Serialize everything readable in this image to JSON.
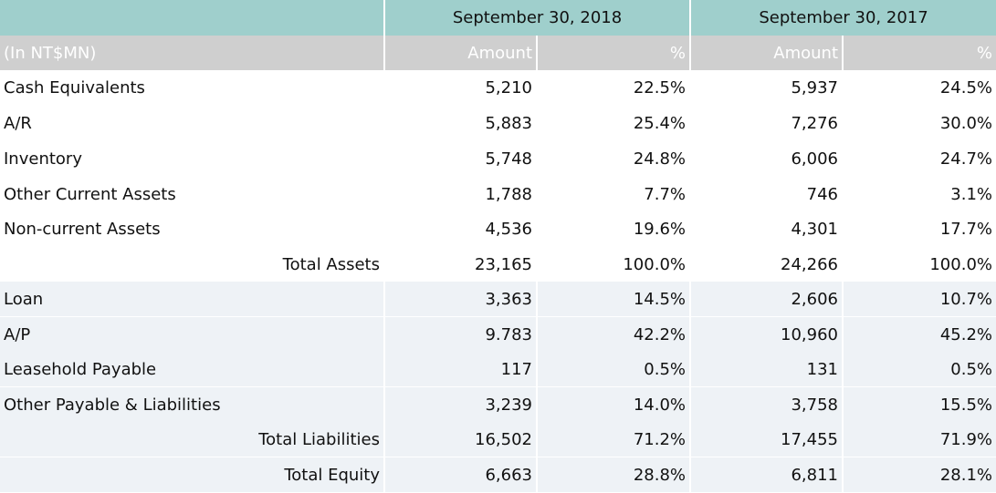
{
  "header": {
    "period_2018": "September 30, 2018",
    "period_2017": "September 30, 2017",
    "unit_label": "(In NT$MN)",
    "amount_label": "Amount",
    "percent_label": "%"
  },
  "rows": [
    {
      "label": "Cash Equivalents",
      "a2018": "5,210",
      "p2018": "22.5%",
      "a2017": "5,937",
      "p2017": "24.5%"
    },
    {
      "label": "A/R",
      "a2018": "5,883",
      "p2018": "25.4%",
      "a2017": "7,276",
      "p2017": "30.0%"
    },
    {
      "label": "Inventory",
      "a2018": "5,748",
      "p2018": "24.8%",
      "a2017": "6,006",
      "p2017": "24.7%"
    },
    {
      "label": "Other Current Assets",
      "a2018": "1,788",
      "p2018": "7.7%",
      "a2017": "746",
      "p2017": "3.1%"
    },
    {
      "label": "Non-current Assets",
      "a2018": "4,536",
      "p2018": "19.6%",
      "a2017": "4,301",
      "p2017": "17.7%"
    },
    {
      "label": "Total Assets",
      "a2018": "23,165",
      "p2018": "100.0%",
      "a2017": "24,266",
      "p2017": "100.0%"
    },
    {
      "label": "Loan",
      "a2018": "3,363",
      "p2018": "14.5%",
      "a2017": "2,606",
      "p2017": "10.7%"
    },
    {
      "label": "A/P",
      "a2018": "9.783",
      "p2018": "42.2%",
      "a2017": "10,960",
      "p2017": "45.2%"
    },
    {
      "label": "Leasehold Payable",
      "a2018": "117",
      "p2018": "0.5%",
      "a2017": "131",
      "p2017": "0.5%"
    },
    {
      "label": "Other Payable & Liabilities",
      "a2018": "3,239",
      "p2018": "14.0%",
      "a2017": "3,758",
      "p2017": "15.5%"
    },
    {
      "label": "Total Liabilities",
      "a2018": "16,502",
      "p2018": "71.2%",
      "a2017": "17,455",
      "p2017": "71.9%"
    },
    {
      "label": "Total Equity",
      "a2018": "6,663",
      "p2018": "28.8%",
      "a2017": "6,811",
      "p2017": "28.1%"
    }
  ]
}
